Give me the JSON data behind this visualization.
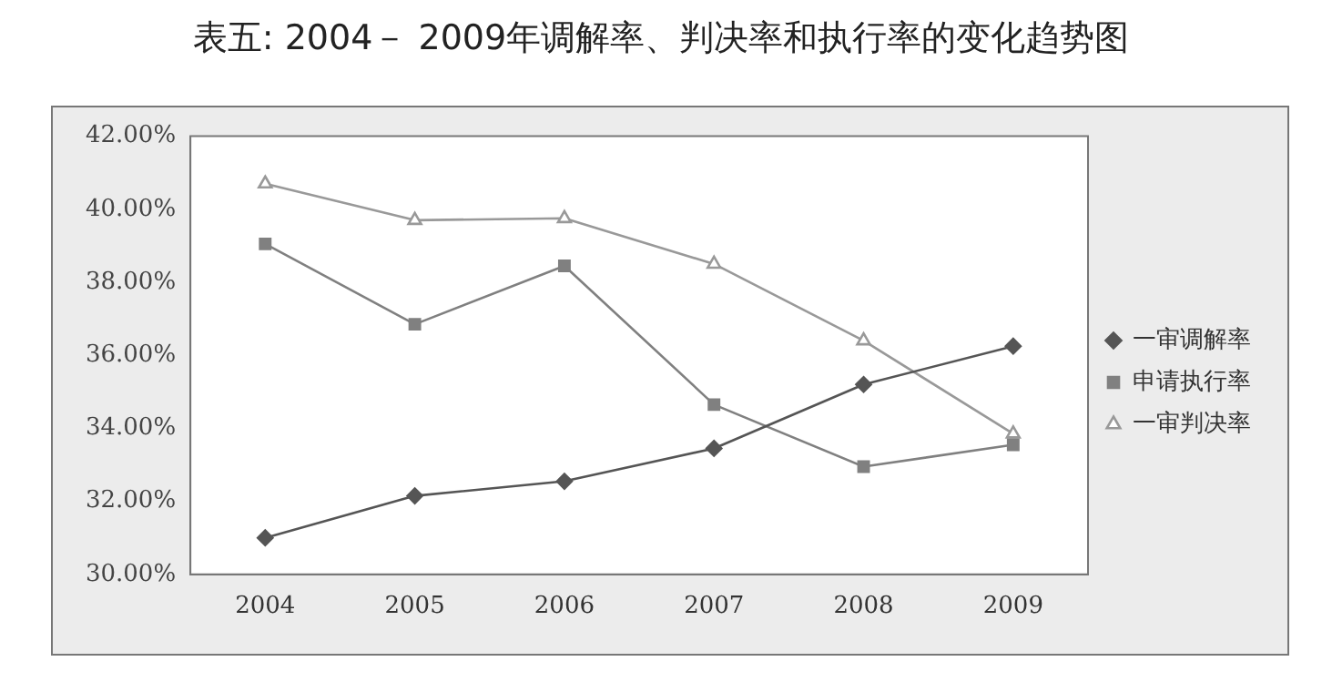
{
  "chart_data": {
    "type": "line",
    "title": "表五: 2004－ 2009年调解率、判决率和执行率的变化趋势图",
    "categories": [
      "2004",
      "2005",
      "2006",
      "2007",
      "2008",
      "2009"
    ],
    "series": [
      {
        "name": "一审调解率",
        "color": "#555555",
        "marker": "diamond",
        "values": [
          31.0,
          32.15,
          32.55,
          33.45,
          35.2,
          36.25
        ]
      },
      {
        "name": "申请执行率",
        "color": "#808080",
        "marker": "square",
        "values": [
          39.05,
          36.85,
          38.45,
          34.65,
          32.95,
          33.55
        ]
      },
      {
        "name": "一审判决率",
        "color": "#999999",
        "marker": "triangle",
        "values": [
          40.7,
          39.7,
          39.75,
          38.5,
          36.4,
          33.85
        ]
      }
    ],
    "ylim": [
      30,
      42
    ],
    "yticks": [
      {
        "value": 30,
        "label": "30.00%"
      },
      {
        "value": 32,
        "label": "32.00%"
      },
      {
        "value": 34,
        "label": "34.00%"
      },
      {
        "value": 36,
        "label": "36.00%"
      },
      {
        "value": 38,
        "label": "38.00%"
      },
      {
        "value": 40,
        "label": "40.00%"
      },
      {
        "value": 42,
        "label": "42.00%"
      }
    ],
    "grid": false,
    "legend": "right"
  }
}
